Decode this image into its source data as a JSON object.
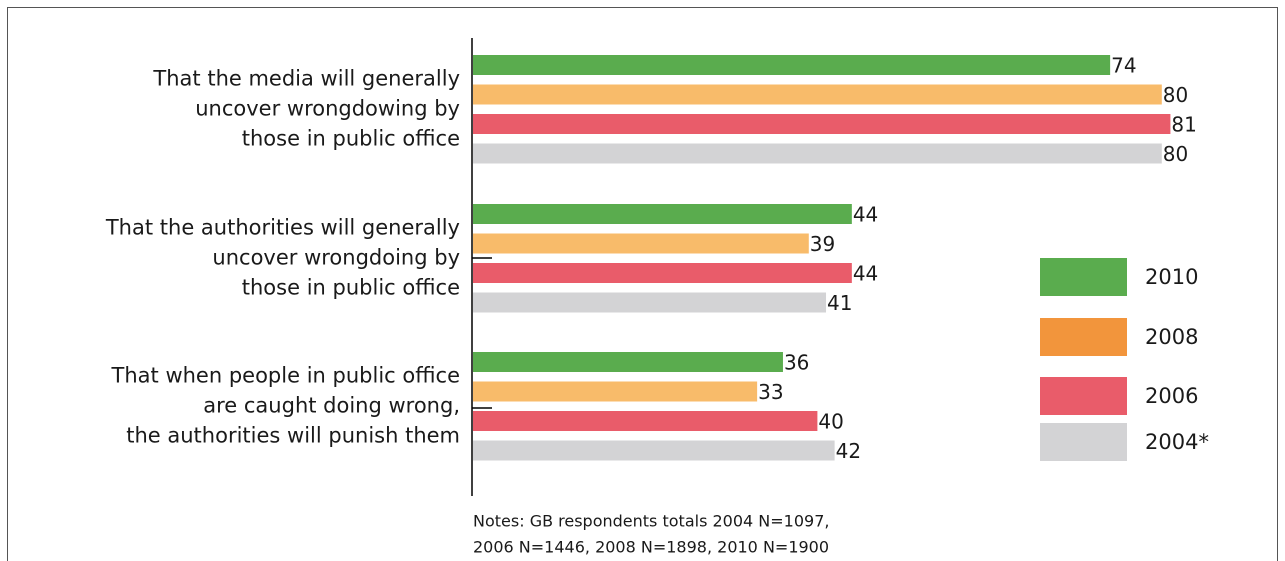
{
  "chart_data": {
    "type": "hbar",
    "categories": [
      "That the media will generally\nuncover wrongdowing by\nthose in public office",
      "That the authorities will generally\nuncover wrongdoing by\nthose in public office",
      "That when people in public office\nare caught doing wrong,\nthe authorities will punish them"
    ],
    "series": [
      {
        "name": "2010",
        "color": "#5aac4e",
        "legend_color": "#5aac4e",
        "values": [
          74,
          44,
          36
        ]
      },
      {
        "name": "2008",
        "color": "#f8bb6a",
        "legend_color": "#f2953c",
        "values": [
          80,
          39,
          33
        ]
      },
      {
        "name": "2006",
        "color": "#e95c6a",
        "legend_color": "#e95c6a",
        "values": [
          81,
          44,
          40
        ]
      },
      {
        "name": "2004*",
        "color": "#d3d3d5",
        "legend_color": "#d3d3d5",
        "values": [
          80,
          41,
          42
        ]
      }
    ],
    "xlim": [
      0,
      100
    ],
    "notes": [
      "Notes: GB respondents totals 2004 N=1097,",
      "2006 N=1446, 2008 N=1898, 2010 N=1900"
    ]
  }
}
